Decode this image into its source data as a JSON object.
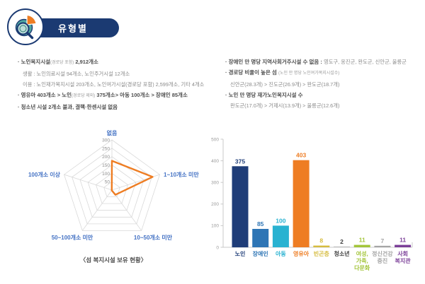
{
  "header": {
    "badge_label": "유형별",
    "badge_color": "#1b3a72",
    "icon": "pie-chart-magnifier-icon"
  },
  "notes_left": [
    {
      "bullet": true,
      "parts": [
        {
          "style": "strong",
          "text": "노인복지시설"
        },
        {
          "style": "small",
          "text": "(경로당 포함)"
        },
        {
          "style": "strong",
          "text": " 2,912개소"
        }
      ]
    },
    {
      "bullet": false,
      "parts": [
        {
          "style": "normal",
          "text": "생활 : 노인의료시설 94개소, 노인주거시설 12개소"
        }
      ]
    },
    {
      "bullet": false,
      "parts": [
        {
          "style": "normal",
          "text": "이용 : 노인재가복지시설 203개소, 노인여가시설(경로당 포함) 2,599개소, 기타 4개소"
        }
      ]
    },
    {
      "bullet": true,
      "parts": [
        {
          "style": "strong",
          "text": "영유아 403개소 > 노인"
        },
        {
          "style": "small",
          "text": "(경로당 제외)"
        },
        {
          "style": "strong",
          "text": " 375개소> 아동 100개소 > 장애인 85개소"
        }
      ]
    },
    {
      "bullet": true,
      "parts": [
        {
          "style": "strong",
          "text": "청소년 시설 2개소 불과, 결핵·한센시설 없음"
        }
      ]
    }
  ],
  "notes_right": [
    {
      "bullet": true,
      "parts": [
        {
          "style": "strong",
          "text": "장애인 만 명당 지역사회거주시설 수 없음 : "
        },
        {
          "style": "normal",
          "text": "영도구, 옹진군, 완도군, 신안군, 울릉군"
        }
      ]
    },
    {
      "bullet": true,
      "parts": [
        {
          "style": "strong",
          "text": "경로당 비율이 높은 섬 "
        },
        {
          "style": "small",
          "text": "(노인 만 명당 노인여가복지시설수)"
        }
      ]
    },
    {
      "bullet": false,
      "parts": [
        {
          "style": "normal",
          "text": "신안군(28.3개) > 진도군(26.9개) > 완도군(18.7개)"
        }
      ]
    },
    {
      "bullet": true,
      "parts": [
        {
          "style": "strong",
          "text": "노인 만 명당 재가노인복지시설 수"
        }
      ]
    },
    {
      "bullet": false,
      "parts": [
        {
          "style": "normal",
          "text": "완도군(17.0개) > 거제시(13.9개) > 울릉군(12.6개)"
        }
      ]
    }
  ],
  "chart_data": [
    {
      "type": "radar",
      "title": "〈섬 복지시설 보유 현황〉",
      "categories": [
        "없음",
        "1~10개소 미만",
        "10~50개소 미만",
        "50~100개소 미만",
        "100개소 이상"
      ],
      "values": [
        175,
        255,
        35,
        2,
        1
      ],
      "rmax": 300,
      "ticks": [
        50,
        100,
        150,
        200,
        250,
        300
      ],
      "grid": true,
      "line_color": "#ee7d23",
      "axis_label_color": "#4472c4",
      "tick_label_color": "#8c8c8c"
    },
    {
      "type": "bar",
      "categories": [
        "노인",
        "장애인",
        "아동",
        "영유아",
        "빈곤층",
        "청소년",
        "여성,가족,다문화",
        "정신건강증진",
        "사회복지관"
      ],
      "label_lines": [
        [
          "노인"
        ],
        [
          "장애인"
        ],
        [
          "아동"
        ],
        [
          "영유아"
        ],
        [
          "빈곤층"
        ],
        [
          "청소년"
        ],
        [
          "여성,",
          "가족,",
          "다문화"
        ],
        [
          "정신건강",
          "증진"
        ],
        [
          "사회",
          "복지관"
        ]
      ],
      "values": [
        375,
        85,
        100,
        403,
        8,
        2,
        11,
        7,
        11
      ],
      "bar_colors": [
        "#1f3d78",
        "#2e75b5",
        "#29b2d1",
        "#ee7d23",
        "#d6bc3f",
        "#c4c4c4",
        "#a3c53a",
        "#a6a6a6",
        "#7b3f98"
      ],
      "label_colors": [
        "#1f3d78",
        "#2e75b5",
        "#29b2d1",
        "#ee7d23",
        "#d6bc3f",
        "#404040",
        "#a3c53a",
        "#a6a6a6",
        "#7b3f98"
      ],
      "xlabel": "",
      "ylabel": "",
      "ylim": [
        0,
        500
      ],
      "yticks": [
        0,
        100,
        200,
        300,
        400,
        500
      ],
      "grid": false,
      "legend": "none"
    }
  ]
}
